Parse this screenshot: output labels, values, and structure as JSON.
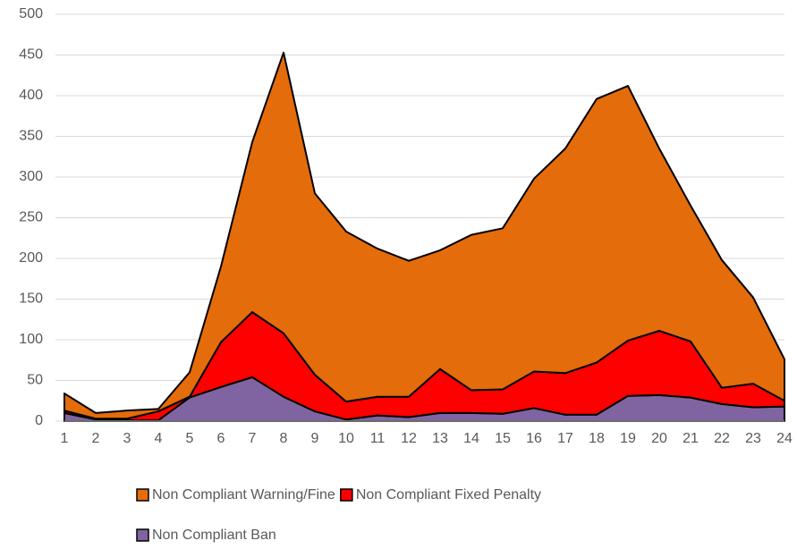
{
  "chart_data": {
    "type": "stacked_area",
    "x": [
      1,
      2,
      3,
      4,
      5,
      6,
      7,
      8,
      9,
      10,
      11,
      12,
      13,
      14,
      15,
      16,
      17,
      18,
      19,
      20,
      21,
      22,
      23,
      24
    ],
    "xlim": [
      1,
      24
    ],
    "xticks": [
      1,
      2,
      3,
      4,
      5,
      6,
      7,
      8,
      9,
      10,
      11,
      12,
      13,
      14,
      15,
      16,
      17,
      18,
      19,
      20,
      21,
      22,
      23,
      24
    ],
    "ylim": [
      0,
      500
    ],
    "yticks": [
      0,
      50,
      100,
      150,
      200,
      250,
      300,
      350,
      400,
      450,
      500
    ],
    "grid": true,
    "legend": "bottom",
    "series": [
      {
        "name": "Non Compliant Warning/Fine",
        "color": "#e46c0a",
        "values": [
          21,
          7,
          10,
          3,
          30,
          93,
          209,
          345,
          223,
          209,
          182,
          167,
          146,
          191,
          198,
          237,
          276,
          324,
          313,
          224,
          167,
          157,
          106,
          51
        ]
      },
      {
        "name": "Non Compliant Fixed Penalty",
        "color": "#ff0000",
        "values": [
          3,
          1,
          2,
          11,
          1,
          55,
          80,
          78,
          45,
          22,
          23,
          25,
          54,
          28,
          30,
          45,
          51,
          64,
          68,
          79,
          69,
          20,
          29,
          7
        ]
      },
      {
        "name": "Non Compliant Ban",
        "color": "#8064a2",
        "values": [
          10,
          2,
          1,
          1,
          29,
          42,
          54,
          30,
          12,
          2,
          7,
          5,
          10,
          10,
          9,
          16,
          8,
          8,
          31,
          32,
          29,
          21,
          17,
          18
        ]
      }
    ]
  }
}
